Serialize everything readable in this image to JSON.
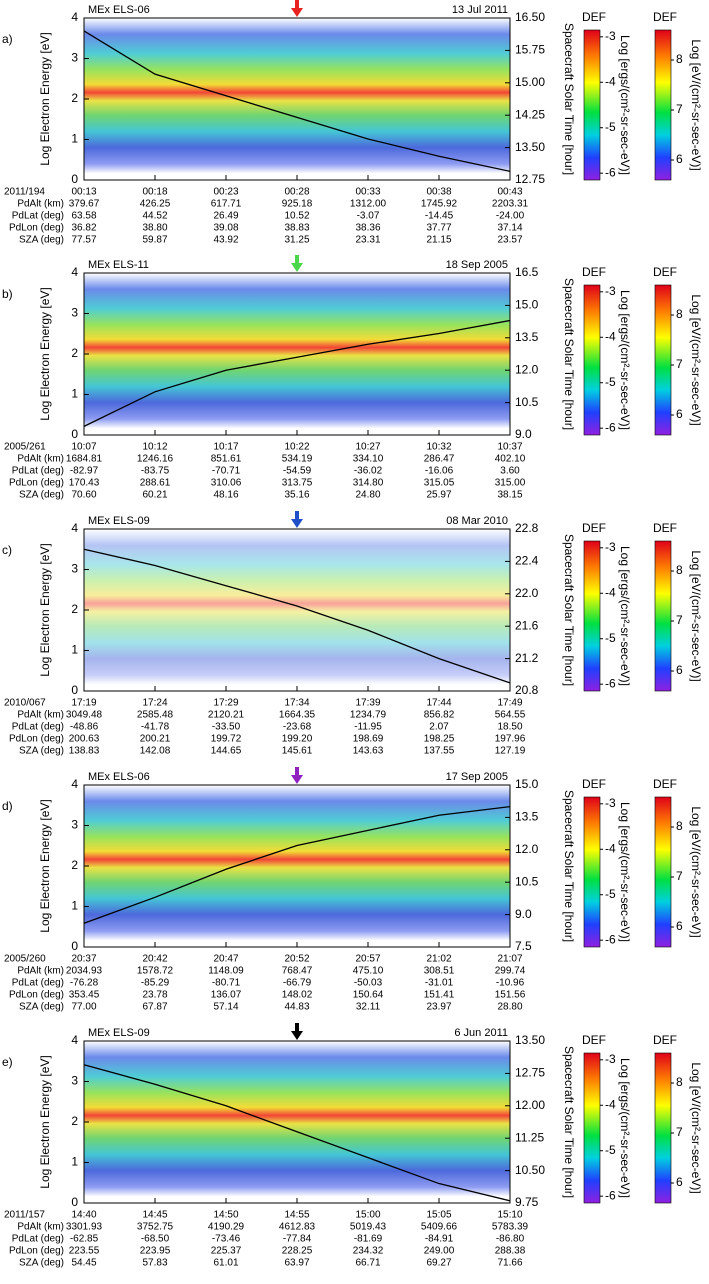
{
  "chart_data": [
    {
      "type": "line",
      "label": "a)",
      "title": "MEx ELS-06",
      "date": "13 Jul 2011",
      "arrow_color": "#e8231f",
      "ylabel": "Log Electron Energy [eV]",
      "y2label": "Spacecraft Solar Time [hour]",
      "ylim": [
        0,
        4
      ],
      "yticks": [
        0,
        1,
        2,
        3,
        4
      ],
      "y2lim": [
        12.75,
        16.5
      ],
      "y2ticks": [
        12.75,
        {
          "value": 13.5,
          "label": "13.50"
        },
        14.25,
        {
          "value": 15,
          "label": "15.00"
        },
        15.75,
        {
          "value": 16.5,
          "label": "16.50"
        }
      ],
      "day_label": "2011/194",
      "categories": [
        "00:13",
        "00:18",
        "00:23",
        "00:28",
        "00:33",
        "00:38",
        "00:43"
      ],
      "series": [
        {
          "color": "#000000",
          "axis": "y2",
          "values": [
            16.2,
            15.2,
            14.7,
            14.2,
            13.7,
            13.3,
            12.95
          ]
        }
      ],
      "table": {
        "labels": [
          "PdAlt (km)",
          "PdLat (deg)",
          "PdLon (deg)",
          "SZA (deg)"
        ],
        "rows": [
          [
            "379.67",
            "426.25",
            "617.71",
            "925.18",
            "1312.00",
            "1745.92",
            "2203.31"
          ],
          [
            "63.58",
            "44.52",
            "26.49",
            "10.52",
            "-3.07",
            "-14.45",
            "-24.00"
          ],
          [
            "36.82",
            "38.80",
            "39.08",
            "38.83",
            "38.36",
            "37.77",
            "37.14"
          ],
          [
            "77.57",
            "59.87",
            "43.92",
            "31.25",
            "23.31",
            "21.15",
            "23.57"
          ]
        ]
      },
      "colorbars": [
        {
          "title": "DEF",
          "label": "Log [ergs/(cm²-sr-sec-eV)]",
          "lim": [
            -6.15,
            -2.85
          ],
          "ticks": [
            -3,
            -4,
            -5,
            -6
          ]
        },
        {
          "title": "DEF",
          "label": "Log [eV/(cm²-sr-sec-eV)]",
          "lim": [
            5.6,
            8.6
          ],
          "ticks": [
            8,
            7,
            6
          ]
        }
      ]
    },
    {
      "type": "line",
      "label": "b)",
      "title": "MEx ELS-11",
      "date": "18 Sep 2005",
      "arrow_color": "#4ad84a",
      "ylabel": "Log Electron Energy [eV]",
      "y2label": "Spacecraft Solar Time [hour]",
      "ylim": [
        0,
        4
      ],
      "yticks": [
        0,
        1,
        2,
        3,
        4
      ],
      "y2lim": [
        9,
        16.5
      ],
      "y2ticks": [
        {
          "value": 9,
          "label": "9.0"
        },
        10.5,
        {
          "value": 12,
          "label": "12.0"
        },
        13.5,
        {
          "value": 15,
          "label": "15.0"
        },
        16.5
      ],
      "day_label": "2005/261",
      "categories": [
        "10:07",
        "10:12",
        "10:17",
        "10:22",
        "10:27",
        "10:32",
        "10:37"
      ],
      "series": [
        {
          "color": "#000000",
          "axis": "y2",
          "values": [
            9.4,
            11.0,
            12.0,
            12.6,
            13.2,
            13.7,
            14.3
          ]
        }
      ],
      "table": {
        "labels": [
          "PdAlt (km)",
          "PdLat (deg)",
          "PdLon (deg)",
          "SZA (deg)"
        ],
        "rows": [
          [
            "1684.81",
            "1246.16",
            "851.61",
            "534.19",
            "334.10",
            "286.47",
            "402.10"
          ],
          [
            "-82.97",
            "-83.75",
            "-70.71",
            "-54.59",
            "-36.02",
            "-16.06",
            "3.60"
          ],
          [
            "170.43",
            "288.61",
            "310.06",
            "313.75",
            "314.80",
            "315.05",
            "315.00"
          ],
          [
            "70.60",
            "60.21",
            "48.16",
            "35.16",
            "24.80",
            "25.97",
            "38.15"
          ]
        ]
      },
      "colorbars": [
        {
          "title": "DEF",
          "label": "Log [ergs/(cm²-sr-sec-eV)]",
          "lim": [
            -6.15,
            -2.85
          ],
          "ticks": [
            -3,
            -4,
            -5,
            -6
          ]
        },
        {
          "title": "DEF",
          "label": "Log [eV/(cm²-sr-sec-eV)]",
          "lim": [
            5.6,
            8.6
          ],
          "ticks": [
            8,
            7,
            6
          ]
        }
      ]
    },
    {
      "type": "line",
      "label": "c)",
      "title": "MEx ELS-09",
      "date": "08 Mar 2010",
      "arrow_color": "#2050c8",
      "ylabel": "Log Electron Energy [eV]",
      "y2label": "Spacecraft Solar Time [hour]",
      "ylim": [
        0,
        4
      ],
      "yticks": [
        0,
        1,
        2,
        3,
        4
      ],
      "y2lim": [
        20.8,
        22.8
      ],
      "y2ticks": [
        20.8,
        21.2,
        21.6,
        {
          "value": 22,
          "label": "22.0"
        },
        22.4,
        22.8
      ],
      "day_label": "2010/067",
      "categories": [
        "17:19",
        "17:24",
        "17:29",
        "17:34",
        "17:39",
        "17:44",
        "17:49"
      ],
      "series": [
        {
          "color": "#000000",
          "axis": "y2",
          "values": [
            22.55,
            22.35,
            22.1,
            21.85,
            21.55,
            21.2,
            20.9
          ]
        }
      ],
      "table": {
        "labels": [
          "PdAlt (km)",
          "PdLat (deg)",
          "PdLon (deg)",
          "SZA (deg)"
        ],
        "rows": [
          [
            "3049.48",
            "2585.48",
            "2120.21",
            "1664.35",
            "1234.79",
            "856.82",
            "564.55"
          ],
          [
            "-48.86",
            "-41.78",
            "-33.50",
            "-23.68",
            "-11.95",
            "2.07",
            "18.50"
          ],
          [
            "200.63",
            "200.21",
            "199.72",
            "199.20",
            "198.69",
            "198.25",
            "197.96"
          ],
          [
            "138.83",
            "142.08",
            "144.65",
            "145.61",
            "143.63",
            "137.55",
            "127.19"
          ]
        ]
      },
      "colorbars": [
        {
          "title": "DEF",
          "label": "Log [ergs/(cm²-sr-sec-eV)]",
          "lim": [
            -6.15,
            -2.85
          ],
          "ticks": [
            -3,
            -4,
            -5,
            -6
          ]
        },
        {
          "title": "DEF",
          "label": "Log [eV/(cm²-sr-sec-eV)]",
          "lim": [
            5.6,
            8.6
          ],
          "ticks": [
            8,
            7,
            6
          ]
        }
      ]
    },
    {
      "type": "line",
      "label": "d)",
      "title": "MEx ELS-06",
      "date": "17 Sep 2005",
      "arrow_color": "#9020c0",
      "ylabel": "Log Electron Energy [eV]",
      "y2label": "Spacecraft Solar Time [hour]",
      "ylim": [
        0,
        4
      ],
      "yticks": [
        0,
        1,
        2,
        3,
        4
      ],
      "y2lim": [
        7.5,
        15
      ],
      "y2ticks": [
        7.5,
        {
          "value": 9,
          "label": "9.0"
        },
        10.5,
        {
          "value": 12,
          "label": "12.0"
        },
        13.5,
        {
          "value": 15,
          "label": "15.0"
        }
      ],
      "day_label": "2005/260",
      "categories": [
        "20:37",
        "20:42",
        "20:47",
        "20:52",
        "20:57",
        "21:02",
        "21:07"
      ],
      "series": [
        {
          "color": "#000000",
          "axis": "y2",
          "values": [
            8.6,
            9.8,
            11.1,
            12.2,
            12.9,
            13.6,
            14.0
          ]
        }
      ],
      "table": {
        "labels": [
          "PdAlt (km)",
          "PdLat (deg)",
          "PdLon (deg)",
          "SZA (deg)"
        ],
        "rows": [
          [
            "2034.93",
            "1578.72",
            "1148.09",
            "768.47",
            "475.10",
            "308.51",
            "299.74"
          ],
          [
            "-76.28",
            "-85.29",
            "-80.71",
            "-66.79",
            "-50.03",
            "-31.01",
            "-10.96"
          ],
          [
            "353.45",
            "23.78",
            "136.07",
            "148.02",
            "150.64",
            "151.41",
            "151.56"
          ],
          [
            "77.00",
            "67.87",
            "57.14",
            "44.83",
            "32.11",
            "23.97",
            "28.80"
          ]
        ]
      },
      "colorbars": [
        {
          "title": "DEF",
          "label": "Log [ergs/(cm²-sr-sec-eV)]",
          "lim": [
            -6.15,
            -2.85
          ],
          "ticks": [
            -3,
            -4,
            -5,
            -6
          ]
        },
        {
          "title": "DEF",
          "label": "Log [eV/(cm²-sr-sec-eV)]",
          "lim": [
            5.6,
            8.6
          ],
          "ticks": [
            8,
            7,
            6
          ]
        }
      ]
    },
    {
      "type": "line",
      "label": "e)",
      "title": "MEx ELS-09",
      "date": "6 Jun 2011",
      "arrow_color": "#000000",
      "ylabel": "Log Electron Energy [eV]",
      "y2label": "Spacecraft Solar Time [hour]",
      "ylim": [
        0,
        4
      ],
      "yticks": [
        0,
        1,
        2,
        3,
        4
      ],
      "y2lim": [
        9.75,
        13.5
      ],
      "y2ticks": [
        9.75,
        {
          "value": 10.5,
          "label": "10.50"
        },
        11.25,
        {
          "value": 12,
          "label": "12.00"
        },
        12.75,
        {
          "value": 13.5,
          "label": "13.50"
        }
      ],
      "day_label": "2011/157",
      "categories": [
        "14:40",
        "14:45",
        "14:50",
        "14:55",
        "15:00",
        "15:05",
        "15:10"
      ],
      "series": [
        {
          "color": "#000000",
          "axis": "y2",
          "values": [
            12.95,
            12.5,
            12.0,
            11.4,
            10.8,
            10.2,
            9.8
          ]
        }
      ],
      "table": {
        "labels": [
          "PdAlt (km)",
          "PdLat (deg)",
          "PdLon (deg)",
          "SZA (deg)"
        ],
        "rows": [
          [
            "3301.93",
            "3752.75",
            "4190.29",
            "4612.83",
            "5019.43",
            "5409.66",
            "5783.39"
          ],
          [
            "-62.85",
            "-68.50",
            "-73.46",
            "-77.84",
            "-81.69",
            "-84.91",
            "-86.80"
          ],
          [
            "223.55",
            "223.95",
            "225.37",
            "228.25",
            "234.32",
            "249.00",
            "288.38"
          ],
          [
            "54.45",
            "57.83",
            "61.01",
            "63.97",
            "66.71",
            "69.27",
            "71.66"
          ]
        ]
      },
      "colorbars": [
        {
          "title": "DEF",
          "label": "Log [ergs/(cm²-sr-sec-eV)]",
          "lim": [
            -6.15,
            -2.85
          ],
          "ticks": [
            -3,
            -4,
            -5,
            -6
          ]
        },
        {
          "title": "DEF",
          "label": "Log [eV/(cm²-sr-sec-eV)]",
          "lim": [
            5.6,
            8.6
          ],
          "ticks": [
            8,
            7,
            6
          ]
        }
      ]
    }
  ]
}
